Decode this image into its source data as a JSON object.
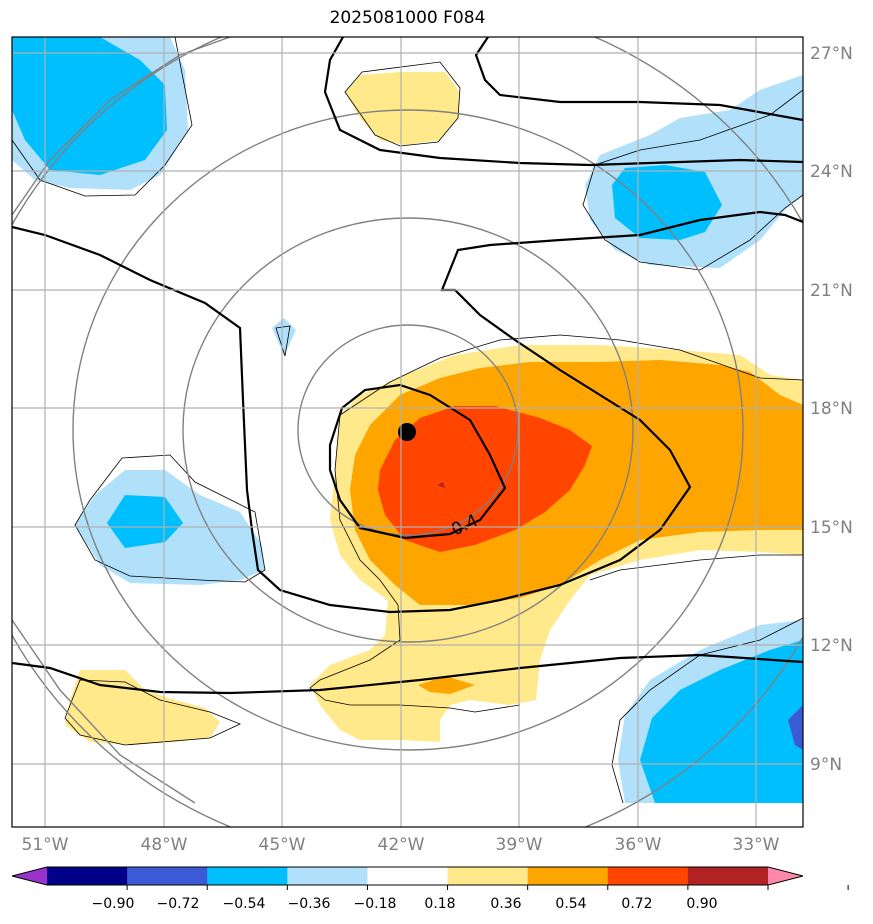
{
  "title": "2025081000 F084",
  "map": {
    "lon_ticks": [
      "51°W",
      "48°W",
      "45°W",
      "42°W",
      "39°W",
      "36°W",
      "33°W"
    ],
    "lat_ticks": [
      "27°N",
      "24°N",
      "21°N",
      "18°N",
      "15°N",
      "12°N",
      "9°N"
    ],
    "contour_label": "0.4",
    "storm_center": {
      "lon": -41.9,
      "lat": 17.4
    }
  },
  "colorbar": {
    "ticks": [
      "−0.90",
      "−0.72",
      "−0.54",
      "−0.36",
      "−0.18",
      "0.18",
      "0.36",
      "0.54",
      "0.72",
      "0.90"
    ],
    "colors": [
      "#9933cc",
      "#000088",
      "#3b5bd6",
      "#00bfff",
      "#b0e0fa",
      "#ffffff",
      "#ffe98a",
      "#ffa500",
      "#ff4500",
      "#b22222",
      "#ff88aa"
    ]
  }
}
